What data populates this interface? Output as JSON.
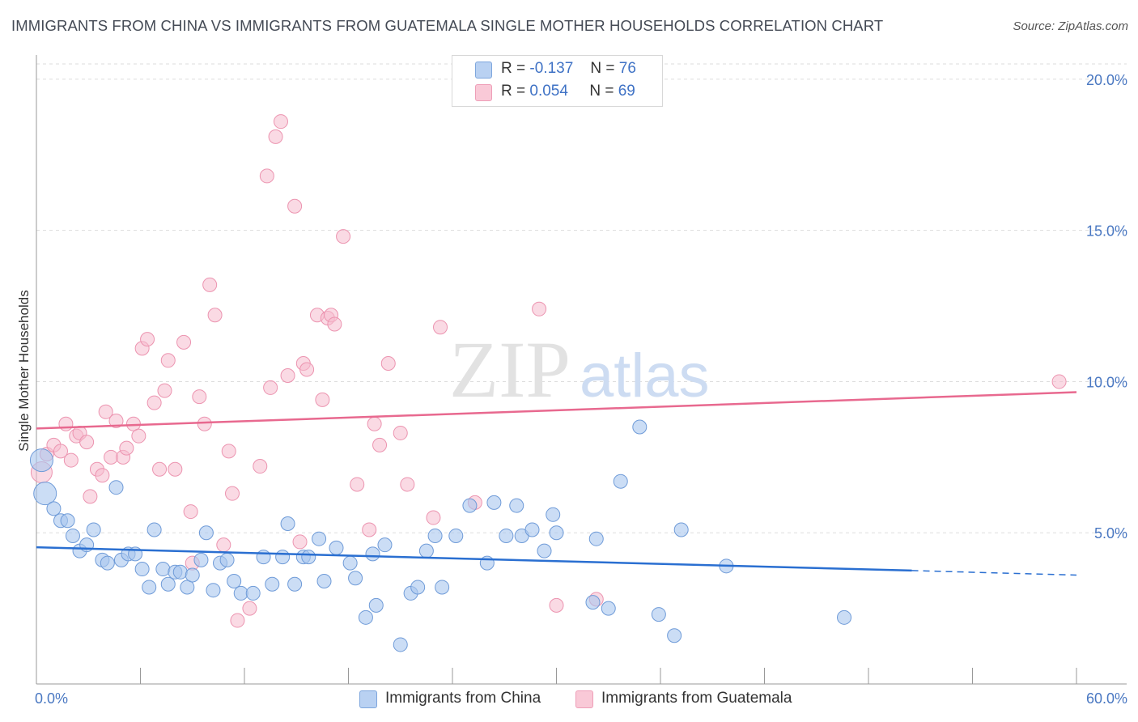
{
  "title": "IMMIGRANTS FROM CHINA VS IMMIGRANTS FROM GUATEMALA SINGLE MOTHER HOUSEHOLDS CORRELATION CHART",
  "source": "Source: ZipAtlas.com",
  "watermark": {
    "zip": "ZIP",
    "atlas": "atlas"
  },
  "legend": {
    "china": {
      "r_label": "R =",
      "r_value": "-0.137",
      "n_label": "N =",
      "n_value": "76"
    },
    "guatemala": {
      "r_label": "R =",
      "r_value": "0.054",
      "n_label": "N =",
      "n_value": "69"
    }
  },
  "colors": {
    "china_fill": "#a9c6ee",
    "china_stroke": "#6f9bd8",
    "china_line": "#2a6fd1",
    "guatemala_fill": "#f6bccd",
    "guatemala_stroke": "#ec94b0",
    "guatemala_line": "#e8698f",
    "tick_text": "#4a78c2",
    "grid": "#dddddd"
  },
  "chart_data": {
    "type": "scatter",
    "ylabel": "Single Mother Households",
    "xlim": [
      0,
      60
    ],
    "ylim": [
      0,
      20.8
    ],
    "x_tick_labels": [
      "0.0%",
      "60.0%"
    ],
    "y_ticks": [
      5,
      10,
      15,
      20
    ],
    "y_tick_labels": [
      "5.0%",
      "10.0%",
      "15.0%",
      "20.0%"
    ],
    "grid": true,
    "legend_position": "top-center",
    "series": [
      {
        "name": "Immigrants from China",
        "trend": {
          "x": [
            0,
            50.5
          ],
          "y": [
            4.52,
            3.75
          ],
          "dashed_to": [
            60,
            3.6
          ]
        },
        "points": [
          {
            "x": 0.3,
            "y": 7.4,
            "big": true
          },
          {
            "x": 0.5,
            "y": 6.3,
            "big": true
          },
          {
            "x": 1.0,
            "y": 5.8
          },
          {
            "x": 1.4,
            "y": 5.4
          },
          {
            "x": 1.8,
            "y": 5.4
          },
          {
            "x": 2.1,
            "y": 4.9
          },
          {
            "x": 2.5,
            "y": 4.4
          },
          {
            "x": 2.9,
            "y": 4.6
          },
          {
            "x": 3.3,
            "y": 5.1
          },
          {
            "x": 3.8,
            "y": 4.1
          },
          {
            "x": 4.1,
            "y": 4.0
          },
          {
            "x": 4.6,
            "y": 6.5
          },
          {
            "x": 4.9,
            "y": 4.1
          },
          {
            "x": 5.3,
            "y": 4.3
          },
          {
            "x": 5.7,
            "y": 4.3
          },
          {
            "x": 6.1,
            "y": 3.8
          },
          {
            "x": 6.5,
            "y": 3.2
          },
          {
            "x": 6.8,
            "y": 5.1
          },
          {
            "x": 7.3,
            "y": 3.8
          },
          {
            "x": 7.6,
            "y": 3.3
          },
          {
            "x": 8.0,
            "y": 3.7
          },
          {
            "x": 8.3,
            "y": 3.7
          },
          {
            "x": 8.7,
            "y": 3.2
          },
          {
            "x": 9.0,
            "y": 3.6
          },
          {
            "x": 9.5,
            "y": 4.1
          },
          {
            "x": 9.8,
            "y": 5.0
          },
          {
            "x": 10.2,
            "y": 3.1
          },
          {
            "x": 10.6,
            "y": 4.0
          },
          {
            "x": 11.0,
            "y": 4.1
          },
          {
            "x": 11.4,
            "y": 3.4
          },
          {
            "x": 11.8,
            "y": 3.0
          },
          {
            "x": 12.5,
            "y": 3.0
          },
          {
            "x": 13.1,
            "y": 4.2
          },
          {
            "x": 13.6,
            "y": 3.3
          },
          {
            "x": 14.2,
            "y": 4.2
          },
          {
            "x": 14.5,
            "y": 5.3
          },
          {
            "x": 14.9,
            "y": 3.3
          },
          {
            "x": 15.4,
            "y": 4.2
          },
          {
            "x": 15.7,
            "y": 4.2
          },
          {
            "x": 16.3,
            "y": 4.8
          },
          {
            "x": 16.6,
            "y": 3.4
          },
          {
            "x": 17.3,
            "y": 4.5
          },
          {
            "x": 18.1,
            "y": 4.0
          },
          {
            "x": 18.4,
            "y": 3.5
          },
          {
            "x": 19.0,
            "y": 2.2
          },
          {
            "x": 19.4,
            "y": 4.3
          },
          {
            "x": 19.6,
            "y": 2.6
          },
          {
            "x": 20.1,
            "y": 4.6
          },
          {
            "x": 21.0,
            "y": 1.3
          },
          {
            "x": 21.6,
            "y": 3.0
          },
          {
            "x": 22.0,
            "y": 3.2
          },
          {
            "x": 22.5,
            "y": 4.4
          },
          {
            "x": 23.0,
            "y": 4.9
          },
          {
            "x": 23.4,
            "y": 3.2
          },
          {
            "x": 24.2,
            "y": 4.9
          },
          {
            "x": 25.0,
            "y": 5.9
          },
          {
            "x": 26.0,
            "y": 4.0
          },
          {
            "x": 26.4,
            "y": 6.0
          },
          {
            "x": 27.1,
            "y": 4.9
          },
          {
            "x": 27.7,
            "y": 5.9
          },
          {
            "x": 28.0,
            "y": 4.9
          },
          {
            "x": 28.6,
            "y": 5.1
          },
          {
            "x": 29.3,
            "y": 4.4
          },
          {
            "x": 29.8,
            "y": 5.6
          },
          {
            "x": 30.0,
            "y": 5.0
          },
          {
            "x": 32.1,
            "y": 2.7
          },
          {
            "x": 32.3,
            "y": 4.8
          },
          {
            "x": 33.0,
            "y": 2.5
          },
          {
            "x": 33.7,
            "y": 6.7
          },
          {
            "x": 34.8,
            "y": 8.5
          },
          {
            "x": 35.9,
            "y": 2.3
          },
          {
            "x": 36.8,
            "y": 1.6
          },
          {
            "x": 37.2,
            "y": 5.1
          },
          {
            "x": 39.8,
            "y": 3.9
          },
          {
            "x": 46.6,
            "y": 2.2
          }
        ]
      },
      {
        "name": "Immigrants from Guatemala",
        "trend": {
          "x": [
            0,
            60
          ],
          "y": [
            8.45,
            9.65
          ]
        },
        "points": [
          {
            "x": 0.3,
            "y": 7.0,
            "big": true
          },
          {
            "x": 0.6,
            "y": 7.6
          },
          {
            "x": 1.0,
            "y": 7.9
          },
          {
            "x": 1.4,
            "y": 7.7
          },
          {
            "x": 1.7,
            "y": 8.6
          },
          {
            "x": 2.0,
            "y": 7.4
          },
          {
            "x": 2.3,
            "y": 8.2
          },
          {
            "x": 2.5,
            "y": 8.3
          },
          {
            "x": 2.9,
            "y": 8.0
          },
          {
            "x": 3.1,
            "y": 6.2
          },
          {
            "x": 3.5,
            "y": 7.1
          },
          {
            "x": 3.8,
            "y": 6.9
          },
          {
            "x": 4.0,
            "y": 9.0
          },
          {
            "x": 4.3,
            "y": 7.5
          },
          {
            "x": 4.6,
            "y": 8.7
          },
          {
            "x": 5.0,
            "y": 7.5
          },
          {
            "x": 5.2,
            "y": 7.8
          },
          {
            "x": 5.6,
            "y": 8.6
          },
          {
            "x": 5.9,
            "y": 8.2
          },
          {
            "x": 6.1,
            "y": 11.1
          },
          {
            "x": 6.4,
            "y": 11.4
          },
          {
            "x": 6.8,
            "y": 9.3
          },
          {
            "x": 7.1,
            "y": 7.1
          },
          {
            "x": 7.4,
            "y": 9.7
          },
          {
            "x": 7.6,
            "y": 10.7
          },
          {
            "x": 8.0,
            "y": 7.1
          },
          {
            "x": 8.5,
            "y": 11.3
          },
          {
            "x": 8.9,
            "y": 5.7
          },
          {
            "x": 9.0,
            "y": 4.0
          },
          {
            "x": 9.4,
            "y": 9.5
          },
          {
            "x": 9.7,
            "y": 8.6
          },
          {
            "x": 10.0,
            "y": 13.2
          },
          {
            "x": 10.3,
            "y": 12.2
          },
          {
            "x": 10.8,
            "y": 4.6
          },
          {
            "x": 11.1,
            "y": 7.7
          },
          {
            "x": 11.3,
            "y": 6.3
          },
          {
            "x": 11.6,
            "y": 2.1
          },
          {
            "x": 12.3,
            "y": 2.5
          },
          {
            "x": 12.9,
            "y": 7.2
          },
          {
            "x": 13.3,
            "y": 16.8
          },
          {
            "x": 13.5,
            "y": 9.8
          },
          {
            "x": 13.8,
            "y": 18.1
          },
          {
            "x": 14.1,
            "y": 18.6
          },
          {
            "x": 14.5,
            "y": 10.2
          },
          {
            "x": 14.9,
            "y": 15.8
          },
          {
            "x": 15.2,
            "y": 4.7
          },
          {
            "x": 15.4,
            "y": 10.6
          },
          {
            "x": 15.6,
            "y": 10.4
          },
          {
            "x": 16.2,
            "y": 12.2
          },
          {
            "x": 16.5,
            "y": 9.4
          },
          {
            "x": 16.8,
            "y": 12.1
          },
          {
            "x": 17.0,
            "y": 12.2
          },
          {
            "x": 17.2,
            "y": 11.9
          },
          {
            "x": 17.7,
            "y": 14.8
          },
          {
            "x": 18.5,
            "y": 6.6
          },
          {
            "x": 19.2,
            "y": 5.1
          },
          {
            "x": 19.5,
            "y": 8.6
          },
          {
            "x": 20.3,
            "y": 10.6
          },
          {
            "x": 21.0,
            "y": 8.3
          },
          {
            "x": 21.4,
            "y": 6.6
          },
          {
            "x": 22.9,
            "y": 5.5
          },
          {
            "x": 23.3,
            "y": 11.8
          },
          {
            "x": 25.3,
            "y": 6.0
          },
          {
            "x": 29.0,
            "y": 12.4
          },
          {
            "x": 30.0,
            "y": 2.6
          },
          {
            "x": 32.3,
            "y": 2.8
          },
          {
            "x": 59.0,
            "y": 10.0
          },
          {
            "x": 19.8,
            "y": 7.9
          }
        ]
      }
    ]
  },
  "bottom_legend": {
    "china": "Immigrants from China",
    "guatemala": "Immigrants from Guatemala"
  }
}
